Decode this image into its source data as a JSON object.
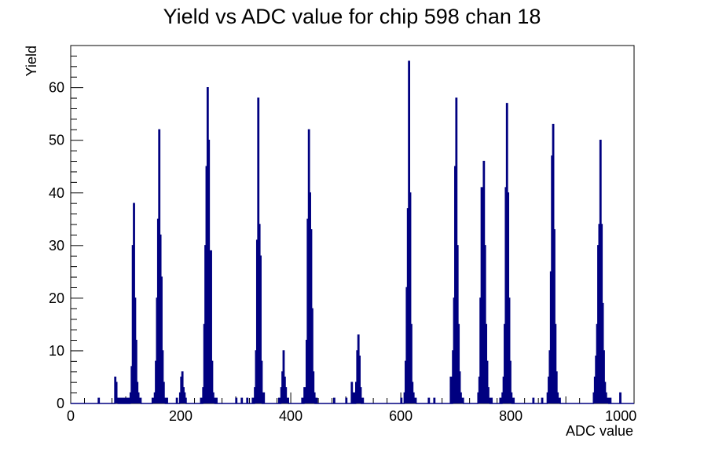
{
  "chart_data": {
    "type": "histogram",
    "title": "Yield vs ADC value for chip 598 chan 18",
    "xlabel": "ADC value",
    "ylabel": "Yield",
    "xlim": [
      0,
      1024
    ],
    "ylim": [
      0,
      68
    ],
    "x_ticks": [
      0,
      200,
      400,
      600,
      800,
      1000
    ],
    "y_ticks": [
      0,
      10,
      20,
      30,
      40,
      50,
      60
    ],
    "grid": false,
    "legend": "none",
    "bin_width": 2,
    "line_color": "#000080",
    "series": [
      {
        "x": [
          50,
          80,
          82,
          84,
          88,
          92,
          96,
          100,
          104,
          108,
          110,
          112,
          114,
          116,
          118,
          120,
          122,
          124,
          126,
          148,
          150,
          152,
          154,
          156,
          158,
          160,
          162,
          164,
          166,
          168,
          170,
          174,
          192,
          198,
          200,
          202,
          204,
          206,
          208,
          236,
          240,
          242,
          244,
          246,
          248,
          250,
          252,
          254,
          256,
          258,
          260,
          264,
          300,
          310,
          320,
          330,
          334,
          336,
          338,
          340,
          342,
          344,
          346,
          350,
          378,
          382,
          384,
          386,
          388,
          390,
          392,
          394,
          420,
          424,
          426,
          428,
          430,
          432,
          434,
          436,
          438,
          440,
          442,
          446,
          478,
          500,
          510,
          514,
          518,
          520,
          522,
          524,
          526,
          530,
          600,
          606,
          608,
          610,
          612,
          614,
          616,
          618,
          620,
          622,
          624,
          626,
          650,
          660,
          690,
          694,
          696,
          698,
          700,
          702,
          704,
          706,
          708,
          710,
          712,
          740,
          742,
          744,
          746,
          748,
          750,
          752,
          754,
          756,
          758,
          760,
          764,
          780,
          784,
          786,
          788,
          790,
          792,
          794,
          796,
          798,
          800,
          804,
          840,
          856,
          866,
          868,
          870,
          872,
          874,
          876,
          878,
          880,
          882,
          884,
          886,
          888,
          950,
          952,
          954,
          956,
          958,
          960,
          962,
          964,
          966,
          968,
          970,
          972,
          974,
          976,
          980,
          998
        ],
        "y": [
          1,
          5,
          4,
          1,
          1,
          1,
          1,
          1,
          1,
          2,
          7,
          30,
          38,
          20,
          12,
          4,
          2,
          1,
          1,
          1,
          1,
          2,
          8,
          20,
          35,
          52,
          32,
          24,
          10,
          4,
          1,
          1,
          1,
          2,
          5,
          6,
          3,
          2,
          1,
          1,
          3,
          15,
          30,
          45,
          60,
          50,
          24,
          29,
          8,
          2,
          1,
          1,
          1,
          1,
          1,
          1,
          3,
          10,
          31,
          58,
          34,
          28,
          8,
          2,
          1,
          3,
          6,
          10,
          5,
          3,
          1,
          1,
          1,
          3,
          2,
          12,
          35,
          52,
          40,
          33,
          18,
          6,
          2,
          1,
          1,
          1,
          4,
          2,
          4,
          10,
          13,
          9,
          3,
          1,
          1,
          2,
          8,
          22,
          37,
          65,
          40,
          15,
          4,
          2,
          1,
          1,
          1,
          1,
          5,
          10,
          20,
          45,
          58,
          30,
          15,
          6,
          2,
          1,
          1,
          2,
          5,
          20,
          41,
          38,
          46,
          30,
          15,
          8,
          3,
          1,
          1,
          1,
          2,
          5,
          15,
          41,
          57,
          40,
          20,
          8,
          2,
          1,
          1,
          1,
          2,
          5,
          10,
          25,
          47,
          53,
          33,
          15,
          6,
          2,
          1,
          1,
          2,
          5,
          9,
          15,
          30,
          34,
          50,
          34,
          19,
          10,
          4,
          2,
          1,
          1,
          1,
          2
        ]
      }
    ]
  }
}
